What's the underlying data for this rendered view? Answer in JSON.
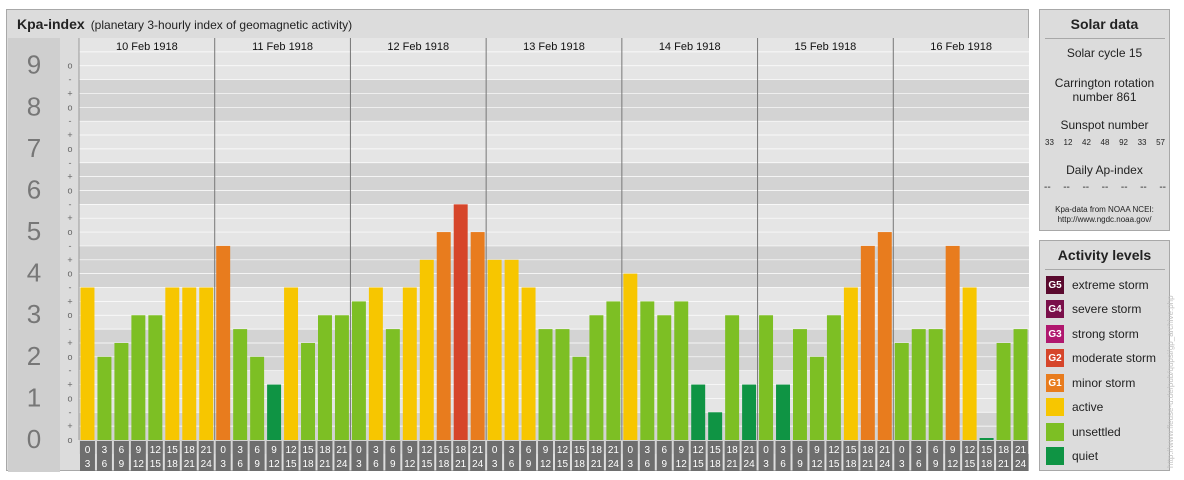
{
  "header": {
    "title": "Kpa-index",
    "subtitle": "(planetary 3-hourly index of geomagnetic activity)"
  },
  "solar": {
    "title": "Solar data",
    "cycle": "Solar cycle 15",
    "carrington_line1": "Carrington rotation",
    "carrington_line2": "number 861",
    "sunspot_label": "Sunspot number",
    "sunspots": [
      "33",
      "12",
      "42",
      "48",
      "92",
      "33",
      "57"
    ],
    "ap_label": "Daily Ap-index",
    "ap_values": [
      "--",
      "--",
      "--",
      "--",
      "--",
      "--",
      "--"
    ],
    "source_line1": "Kpa-data from NOAA NCEI:",
    "source_line2": "http://www.ngdc.noaa.gov/"
  },
  "levels": {
    "title": "Activity levels",
    "items": [
      {
        "code": "G5",
        "label": "extreme storm",
        "color": "#5a0a2e"
      },
      {
        "code": "G4",
        "label": "severe storm",
        "color": "#7a0f4a"
      },
      {
        "code": "G3",
        "label": "strong storm",
        "color": "#b0176e"
      },
      {
        "code": "G2",
        "label": "moderate storm",
        "color": "#d6452a"
      },
      {
        "code": "G1",
        "label": "minor storm",
        "color": "#e87c1e"
      },
      {
        "code": "",
        "label": "active",
        "color": "#f7c600"
      },
      {
        "code": "",
        "label": "unsettled",
        "color": "#7dbf24"
      },
      {
        "code": "",
        "label": "quiet",
        "color": "#0f9444"
      }
    ]
  },
  "watermark": "http://www.fleuse-u.de/pub/qupsi/gp_archive.php",
  "chart_data": {
    "type": "bar",
    "title": "Kpa-index",
    "days": [
      "10 Feb 1918",
      "11 Feb 1918",
      "12 Feb 1918",
      "13 Feb 1918",
      "14 Feb 1918",
      "15 Feb 1918",
      "16 Feb 1918"
    ],
    "interval_top": [
      "0",
      "3",
      "6",
      "9",
      "12",
      "15",
      "18",
      "21"
    ],
    "interval_bottom": [
      "3",
      "6",
      "9",
      "12",
      "15",
      "18",
      "21",
      "24"
    ],
    "y_ticks": [
      "0",
      "1",
      "2",
      "3",
      "4",
      "5",
      "6",
      "7",
      "8",
      "9"
    ],
    "sub_ticks": [
      "-",
      "o",
      "+"
    ],
    "ylim": [
      0,
      9
    ],
    "grid": true,
    "values": [
      3.667,
      2.0,
      2.333,
      3.0,
      3.0,
      3.667,
      3.667,
      3.667,
      4.667,
      2.667,
      2.0,
      1.333,
      3.667,
      2.333,
      3.0,
      3.0,
      3.333,
      3.667,
      2.667,
      3.667,
      4.333,
      5.0,
      5.667,
      5.0,
      4.333,
      4.333,
      3.667,
      2.667,
      2.667,
      2.0,
      3.0,
      3.333,
      4.0,
      3.333,
      3.0,
      3.333,
      1.333,
      0.667,
      3.0,
      1.333,
      3.0,
      1.333,
      2.667,
      2.0,
      3.0,
      3.667,
      4.667,
      5.0,
      2.333,
      2.667,
      2.667,
      4.667,
      3.667,
      0.0,
      2.333,
      2.667
    ]
  }
}
